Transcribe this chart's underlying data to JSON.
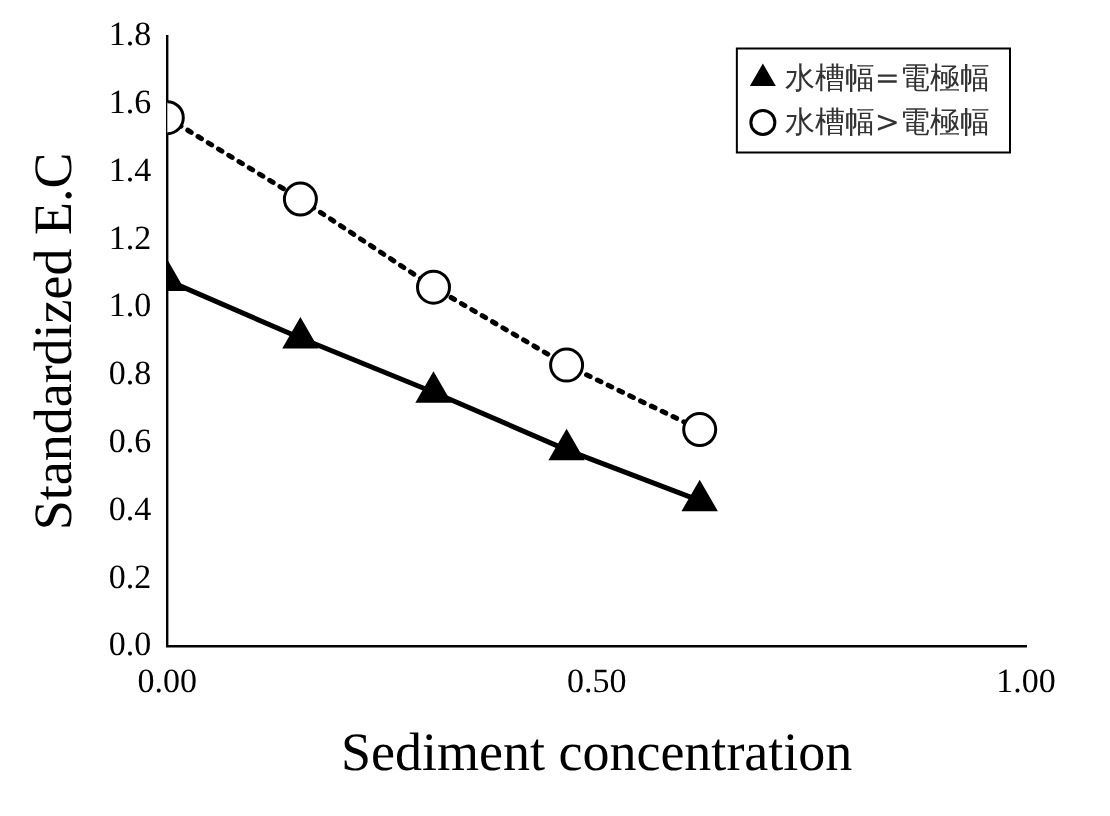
{
  "chart_data": {
    "type": "line",
    "xlabel": "Sediment concentration",
    "ylabel": "Standardized E.C",
    "xlim": [
      0,
      1
    ],
    "xticks": [
      {
        "value": 0,
        "label": "0.00"
      },
      {
        "value": 0.5,
        "label": "0.50"
      },
      {
        "value": 1,
        "label": "1.00"
      }
    ],
    "ylim": [
      0,
      1.8
    ],
    "yticks": [
      {
        "value": 0,
        "label": "0.0"
      },
      {
        "value": 0.2,
        "label": "0.2"
      },
      {
        "value": 0.4,
        "label": "0.4"
      },
      {
        "value": 0.6,
        "label": "0.6"
      },
      {
        "value": 0.8,
        "label": "0.8"
      },
      {
        "value": 1,
        "label": "1.0"
      },
      {
        "value": 1.2,
        "label": "1.2"
      },
      {
        "value": 1.4,
        "label": "1.4"
      },
      {
        "value": 1.6,
        "label": "1.6"
      },
      {
        "value": 1.8,
        "label": "1.8"
      }
    ],
    "grid": false,
    "legend": "top right",
    "series": [
      {
        "name": "水槽幅=電極幅",
        "color": "#000000",
        "marker": "triangle",
        "line_style": "solid",
        "x": [
          0,
          0.155,
          0.31,
          0.465,
          0.62
        ],
        "values": [
          1.08,
          0.91,
          0.75,
          0.58,
          0.43
        ]
      },
      {
        "name": "水槽幅>電極幅",
        "color": "#000000",
        "marker": "circle",
        "line_style": "dotted",
        "x": [
          0,
          0.155,
          0.31,
          0.465,
          0.62
        ],
        "values": [
          1.56,
          1.32,
          1.06,
          0.83,
          0.64
        ]
      }
    ]
  }
}
